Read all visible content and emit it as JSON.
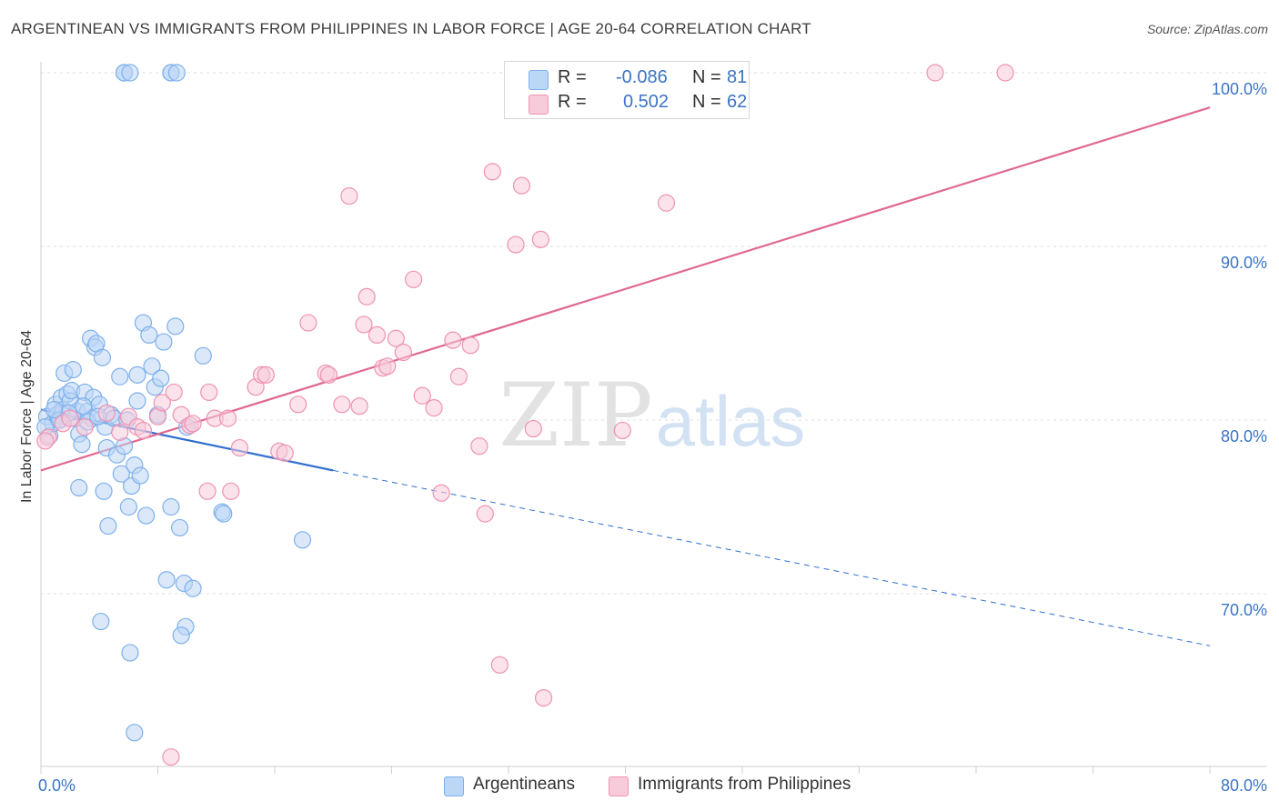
{
  "title": "ARGENTINEAN VS IMMIGRANTS FROM PHILIPPINES IN LABOR FORCE | AGE 20-64 CORRELATION CHART",
  "source": "Source: ZipAtlas.com",
  "watermark": {
    "zip": "ZIP",
    "atlas": "atlas"
  },
  "legend": {
    "rows": [
      {
        "r_label": "R =",
        "r_value": "-0.086",
        "n_label": "N =",
        "n_value": "81",
        "color": "#7eb0ea",
        "fill": "#bcd6f5"
      },
      {
        "r_label": "R =",
        "r_value": "0.502",
        "n_label": "N =",
        "n_value": "62",
        "color": "#ee93b2",
        "fill": "#f8cbda"
      }
    ]
  },
  "bottom_legend": [
    {
      "label": "Argentineans",
      "fill": "#bcd6f5",
      "color": "#7eb0ea"
    },
    {
      "label": "Immigrants from Philippines",
      "fill": "#f8cbda",
      "color": "#ee93b2"
    }
  ],
  "chart_data": {
    "type": "scatter",
    "title": "ARGENTINEAN VS IMMIGRANTS FROM PHILIPPINES IN LABOR FORCE | AGE 20-64 CORRELATION CHART",
    "xlabel": "",
    "ylabel": "In Labor Force | Age 20-64",
    "xlim": [
      0,
      80
    ],
    "ylim": [
      60.4,
      102
    ],
    "x_tick_labels": [
      "0.0%",
      "80.0%"
    ],
    "y_ticks": [
      70,
      80,
      90,
      100
    ],
    "y_tick_labels": [
      "70.0%",
      "80.0%",
      "90.0%",
      "100.0%"
    ],
    "grid": true,
    "legend_position": "top-center",
    "series": [
      {
        "name": "Argentineans",
        "color": "#7eb0ea",
        "fill": "#bcd6f5",
        "trend": {
          "x": [
            0,
            20,
            80
          ],
          "y": [
            80.6,
            77.1,
            67.0
          ],
          "solid_until": 20
        },
        "points": [
          [
            0.4,
            80.2
          ],
          [
            0.6,
            79.1
          ],
          [
            0.8,
            79.8
          ],
          [
            1.0,
            80.9
          ],
          [
            1.1,
            80.3
          ],
          [
            1.2,
            80.0
          ],
          [
            1.4,
            81.3
          ],
          [
            1.5,
            80.6
          ],
          [
            1.6,
            82.7
          ],
          [
            1.8,
            81.5
          ],
          [
            2.0,
            81.1
          ],
          [
            2.1,
            81.7
          ],
          [
            2.2,
            82.9
          ],
          [
            2.3,
            80.1
          ],
          [
            2.5,
            80.5
          ],
          [
            2.6,
            79.2
          ],
          [
            2.8,
            78.6
          ],
          [
            3.0,
            81.6
          ],
          [
            2.6,
            76.1
          ],
          [
            3.2,
            80.5
          ],
          [
            3.4,
            84.7
          ],
          [
            3.5,
            80.1
          ],
          [
            3.6,
            81.3
          ],
          [
            3.7,
            84.2
          ],
          [
            3.8,
            84.4
          ],
          [
            3.2,
            79.9
          ],
          [
            4.0,
            80.9
          ],
          [
            4.2,
            83.6
          ],
          [
            4.3,
            75.9
          ],
          [
            4.4,
            79.6
          ],
          [
            4.5,
            78.4
          ],
          [
            4.6,
            73.9
          ],
          [
            4.8,
            80.3
          ],
          [
            5.0,
            80.1
          ],
          [
            5.2,
            78.0
          ],
          [
            5.4,
            82.5
          ],
          [
            5.5,
            76.9
          ],
          [
            5.7,
            78.5
          ],
          [
            5.9,
            80.0
          ],
          [
            6.0,
            75.0
          ],
          [
            6.2,
            76.2
          ],
          [
            6.4,
            77.4
          ],
          [
            6.6,
            81.1
          ],
          [
            6.6,
            82.6
          ],
          [
            6.8,
            76.8
          ],
          [
            7.0,
            85.6
          ],
          [
            7.2,
            74.5
          ],
          [
            7.4,
            84.9
          ],
          [
            7.6,
            83.1
          ],
          [
            7.8,
            81.9
          ],
          [
            8.0,
            80.3
          ],
          [
            8.2,
            82.4
          ],
          [
            8.4,
            84.5
          ],
          [
            8.6,
            70.8
          ],
          [
            8.9,
            75.0
          ],
          [
            9.2,
            85.4
          ],
          [
            9.5,
            73.8
          ],
          [
            9.8,
            70.6
          ],
          [
            10.0,
            79.6
          ],
          [
            9.9,
            68.1
          ],
          [
            9.6,
            67.6
          ],
          [
            10.4,
            70.3
          ],
          [
            11.1,
            83.7
          ],
          [
            12.4,
            74.7
          ],
          [
            12.5,
            74.6
          ],
          [
            17.9,
            73.1
          ],
          [
            5.7,
            100.0
          ],
          [
            5.7,
            100.0
          ],
          [
            6.1,
            100.0
          ],
          [
            8.9,
            100.0
          ],
          [
            8.9,
            100.0
          ],
          [
            9.3,
            100.0
          ],
          [
            4.1,
            68.4
          ],
          [
            6.1,
            66.6
          ],
          [
            6.4,
            62.0
          ],
          [
            0.3,
            79.6
          ],
          [
            1.9,
            80.4
          ],
          [
            2.9,
            80.8
          ],
          [
            1.3,
            80.0
          ],
          [
            0.9,
            80.6
          ],
          [
            3.9,
            80.2
          ]
        ]
      },
      {
        "name": "Immigrants from Philippines",
        "color": "#ee93b2",
        "fill": "#f8cbda",
        "trend": {
          "x": [
            0,
            80
          ],
          "y": [
            77.1,
            98.0
          ]
        },
        "points": [
          [
            0.5,
            79.0
          ],
          [
            1.5,
            79.8
          ],
          [
            2.0,
            80.1
          ],
          [
            3.0,
            79.6
          ],
          [
            4.5,
            80.4
          ],
          [
            5.4,
            79.3
          ],
          [
            6.0,
            80.2
          ],
          [
            6.6,
            79.6
          ],
          [
            7.0,
            79.4
          ],
          [
            8.0,
            80.2
          ],
          [
            8.3,
            81.0
          ],
          [
            9.1,
            81.6
          ],
          [
            9.6,
            80.3
          ],
          [
            10.2,
            79.7
          ],
          [
            10.4,
            79.8
          ],
          [
            11.5,
            81.6
          ],
          [
            11.9,
            80.1
          ],
          [
            12.8,
            80.1
          ],
          [
            11.4,
            75.9
          ],
          [
            13.0,
            75.9
          ],
          [
            13.6,
            78.4
          ],
          [
            14.7,
            81.9
          ],
          [
            15.1,
            82.6
          ],
          [
            15.4,
            82.6
          ],
          [
            16.3,
            78.2
          ],
          [
            16.7,
            78.1
          ],
          [
            17.6,
            80.9
          ],
          [
            18.3,
            85.6
          ],
          [
            19.5,
            82.7
          ],
          [
            19.7,
            82.6
          ],
          [
            20.6,
            80.9
          ],
          [
            21.8,
            80.8
          ],
          [
            22.1,
            85.5
          ],
          [
            22.3,
            87.1
          ],
          [
            23.0,
            84.9
          ],
          [
            23.4,
            83.0
          ],
          [
            23.7,
            83.1
          ],
          [
            24.3,
            84.7
          ],
          [
            24.8,
            83.9
          ],
          [
            25.5,
            88.1
          ],
          [
            26.1,
            81.4
          ],
          [
            26.9,
            80.7
          ],
          [
            27.4,
            75.8
          ],
          [
            28.2,
            84.6
          ],
          [
            28.6,
            82.5
          ],
          [
            29.4,
            84.3
          ],
          [
            30.0,
            78.5
          ],
          [
            30.4,
            74.6
          ],
          [
            21.1,
            92.9
          ],
          [
            30.9,
            94.3
          ],
          [
            31.4,
            65.9
          ],
          [
            32.5,
            90.1
          ],
          [
            32.9,
            93.5
          ],
          [
            33.7,
            79.5
          ],
          [
            34.2,
            90.4
          ],
          [
            34.4,
            64.0
          ],
          [
            39.8,
            79.4
          ],
          [
            42.8,
            92.5
          ],
          [
            61.2,
            100.0
          ],
          [
            66.0,
            100.0
          ],
          [
            8.9,
            60.6
          ],
          [
            0.3,
            78.8
          ]
        ]
      }
    ]
  }
}
